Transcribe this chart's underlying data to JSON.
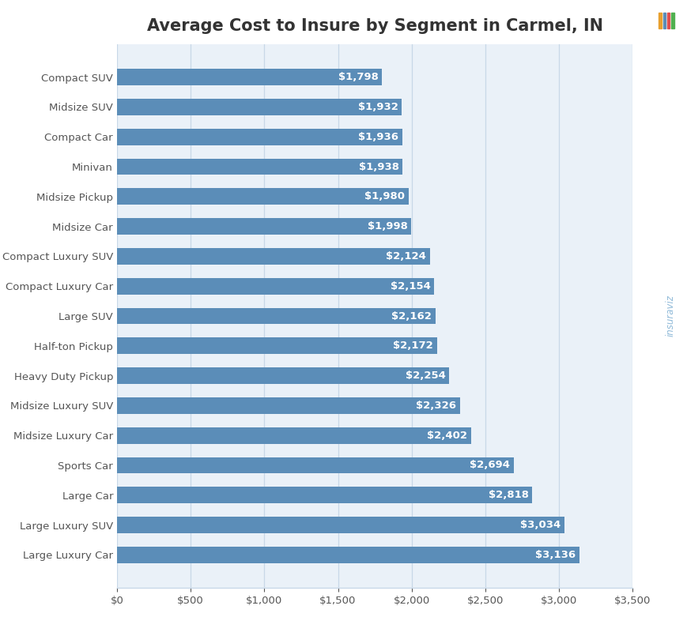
{
  "title": "Average Cost to Insure by Segment in Carmel, IN",
  "categories": [
    "Compact SUV",
    "Midsize SUV",
    "Compact Car",
    "Minivan",
    "Midsize Pickup",
    "Midsize Car",
    "Compact Luxury SUV",
    "Compact Luxury Car",
    "Large SUV",
    "Half-ton Pickup",
    "Heavy Duty Pickup",
    "Midsize Luxury SUV",
    "Midsize Luxury Car",
    "Sports Car",
    "Large Car",
    "Large Luxury SUV",
    "Large Luxury Car"
  ],
  "values": [
    1798,
    1932,
    1936,
    1938,
    1980,
    1998,
    2124,
    2154,
    2162,
    2172,
    2254,
    2326,
    2402,
    2694,
    2818,
    3034,
    3136
  ],
  "bar_color": "#5b8db8",
  "label_color": "#ffffff",
  "title_color": "#333333",
  "background_color": "#ffffff",
  "panel_color": "#eaf1f8",
  "grid_color": "#c8d8e8",
  "xlim": [
    0,
    3500
  ],
  "xticks": [
    0,
    500,
    1000,
    1500,
    2000,
    2500,
    3000,
    3500
  ],
  "title_fontsize": 15,
  "label_fontsize": 9.5,
  "tick_fontsize": 9.5,
  "bar_height": 0.55,
  "watermark_color": "#7badd1",
  "watermark_text": "insuraviz"
}
